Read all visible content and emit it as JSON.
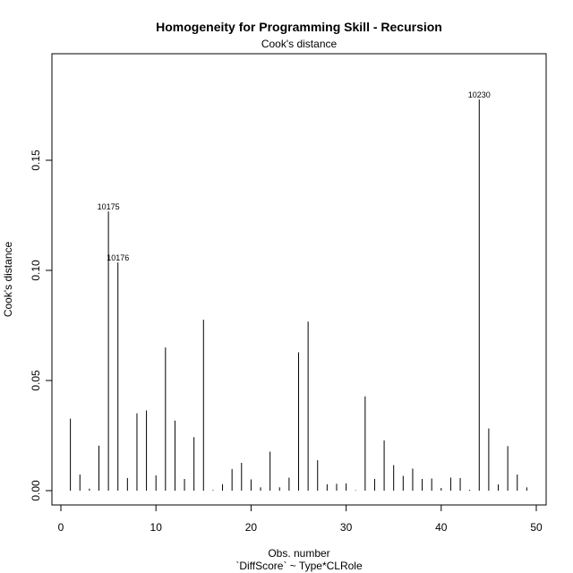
{
  "chart_data": {
    "type": "bar",
    "title": "Homogeneity for Programming Skill - Recursion",
    "subtitle": "Cook's distance",
    "xlabel": "Obs. number",
    "xlabel2": "`DiffScore` ~ Type*CLRole",
    "ylabel": "Cook's distance",
    "xlim": [
      0,
      50
    ],
    "ylim": [
      0,
      0.18
    ],
    "x_ticks": [
      "0",
      "10",
      "20",
      "30",
      "40",
      "50"
    ],
    "y_ticks": [
      "0.00",
      "0.05",
      "0.10",
      "0.15"
    ],
    "grid": false,
    "x": [
      1,
      2,
      3,
      4,
      5,
      6,
      7,
      8,
      9,
      10,
      11,
      12,
      13,
      14,
      15,
      16,
      17,
      18,
      19,
      20,
      21,
      22,
      23,
      24,
      25,
      26,
      27,
      28,
      29,
      30,
      31,
      32,
      33,
      34,
      35,
      36,
      37,
      38,
      39,
      40,
      41,
      42,
      43,
      44,
      45,
      46,
      47,
      48,
      49
    ],
    "values": [
      0.0327,
      0.0073,
      0.0009,
      0.0204,
      0.1268,
      0.1036,
      0.0057,
      0.0351,
      0.0364,
      0.0069,
      0.065,
      0.0318,
      0.0053,
      0.0243,
      0.0776,
      0.0003,
      0.0029,
      0.0098,
      0.0126,
      0.0051,
      0.0015,
      0.0177,
      0.0015,
      0.0059,
      0.0628,
      0.0768,
      0.0138,
      0.0029,
      0.0031,
      0.0033,
      0.0002,
      0.0428,
      0.0053,
      0.0228,
      0.0116,
      0.0067,
      0.01,
      0.0053,
      0.0055,
      0.0012,
      0.0059,
      0.0057,
      0.0004,
      0.1776,
      0.0282,
      0.0028,
      0.0202,
      0.0073,
      0.0015
    ],
    "annotations": [
      {
        "x": 5,
        "label": "10175"
      },
      {
        "x": 6,
        "label": "10176"
      },
      {
        "x": 44,
        "label": "10230"
      }
    ]
  }
}
